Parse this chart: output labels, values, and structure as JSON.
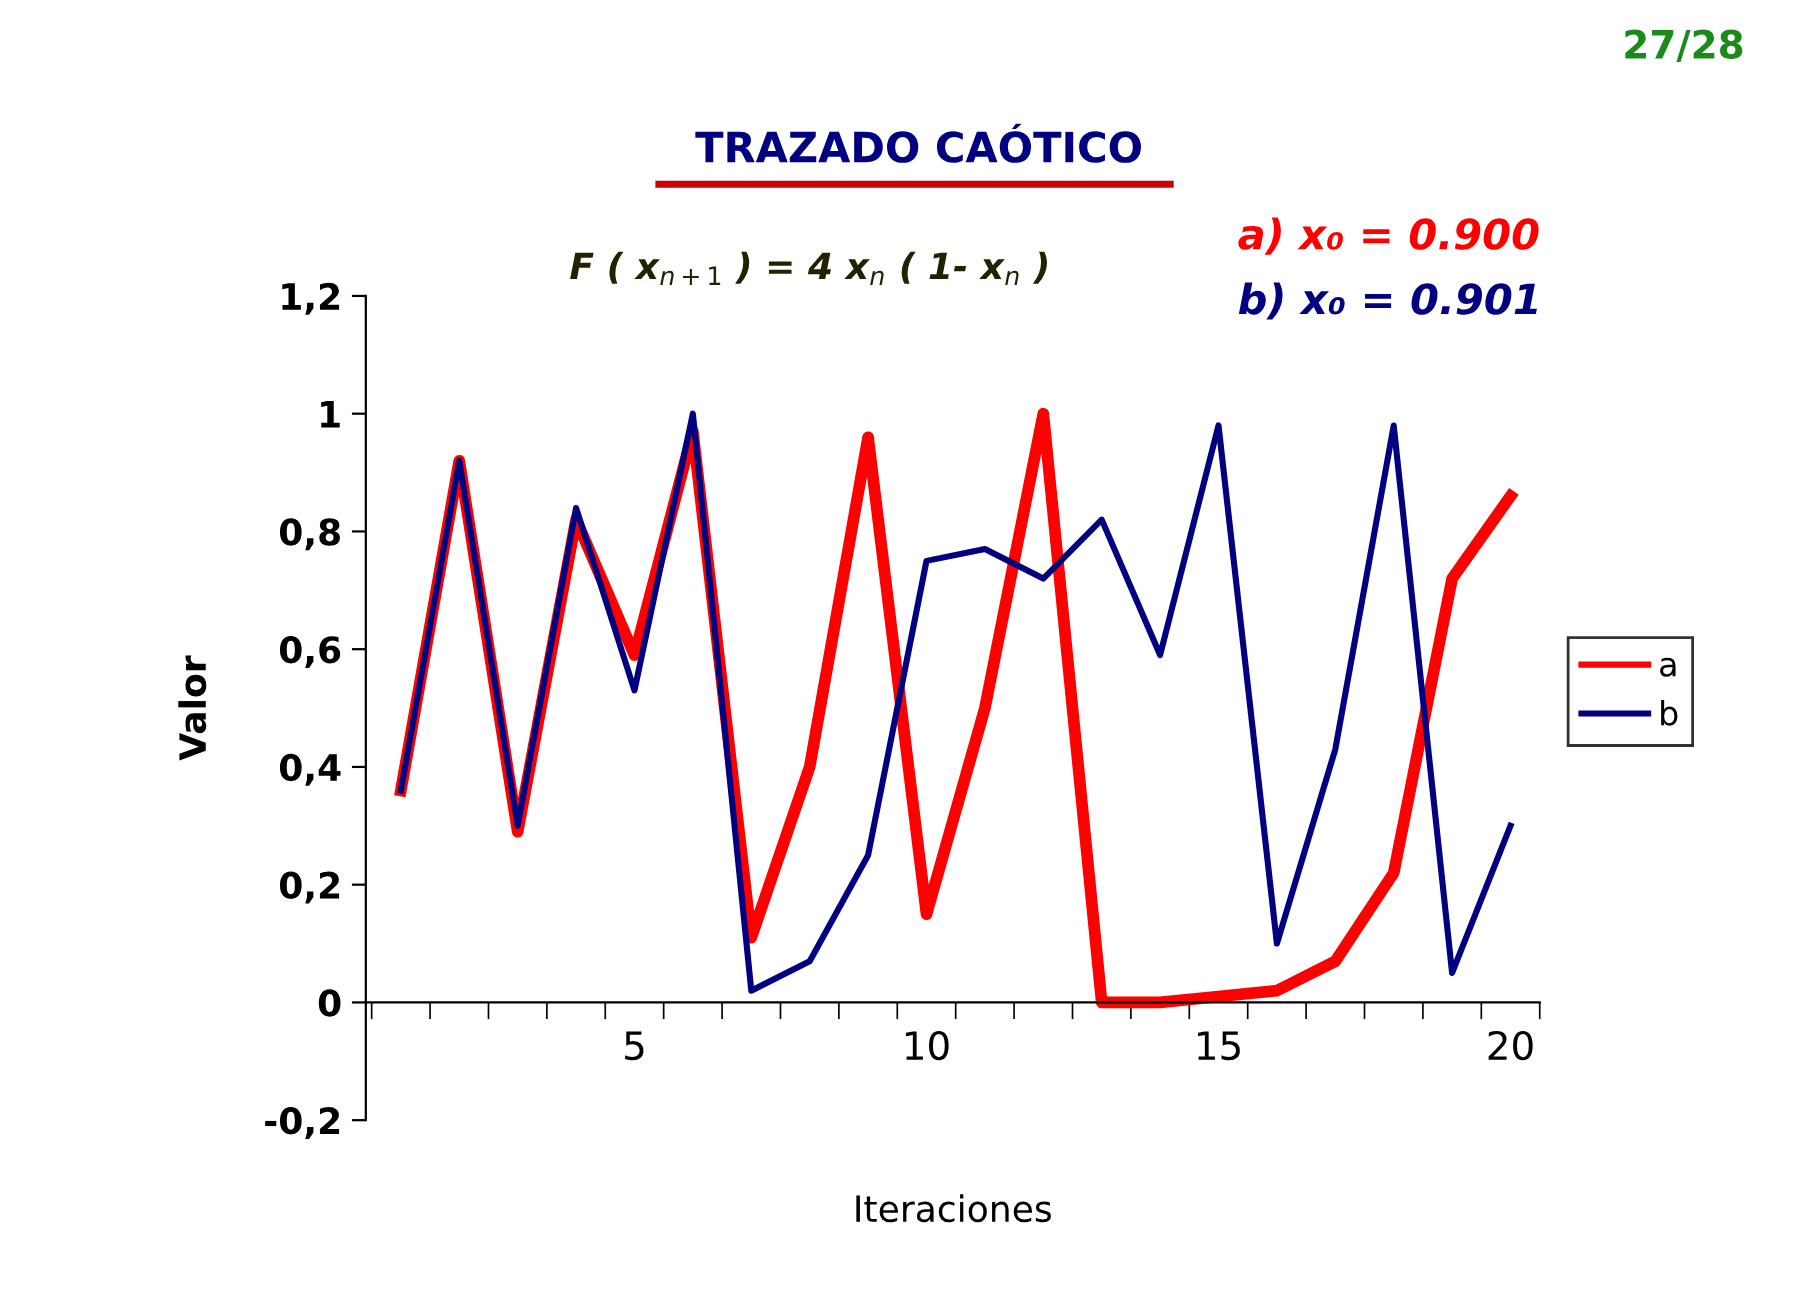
{
  "chart_data": {
    "type": "line",
    "title": "TRAZADO CAÓTICO",
    "subtitle": "F ( x$_{n+1}$ ) = 4 x$_{n}$ ( 1- x$_{n}$ )",
    "xlabel": "Iteraciones",
    "ylabel": "Valor",
    "annotations": [
      "a) x₀ = 0.900",
      "b) x₀ = 0.901",
      "27/28"
    ],
    "categories": [
      null,
      null,
      null,
      null,
      "5",
      null,
      null,
      null,
      null,
      "10",
      null,
      null,
      null,
      null,
      "15",
      null,
      null,
      null,
      null,
      "20"
    ],
    "series": [
      {
        "name": "a",
        "color": "#ff0000",
        "values": [
          0.36,
          0.92,
          0.29,
          0.82,
          0.59,
          0.97,
          0.11,
          0.4,
          0.96,
          0.15,
          0.5,
          1.0,
          0.0,
          0.0,
          0.01,
          0.02,
          0.07,
          0.22,
          0.72,
          0.86
        ]
      },
      {
        "name": "b",
        "color": "#000080",
        "values": [
          0.36,
          0.92,
          0.3,
          0.84,
          0.53,
          1.0,
          0.02,
          0.07,
          0.25,
          0.75,
          0.77,
          0.72,
          0.82,
          0.59,
          0.98,
          0.1,
          0.43,
          0.98,
          0.05,
          0.3
        ]
      }
    ],
    "ylim": [
      -0.2,
      1.2
    ],
    "yticks": [
      {
        "value": -0.2,
        "label": "-0,2"
      },
      0,
      {
        "value": 0.2,
        "label": "0,2"
      },
      {
        "value": 0.4,
        "label": "0,4"
      },
      {
        "value": 0.6,
        "label": "0,6"
      },
      {
        "value": 0.8,
        "label": "0,8"
      },
      1,
      {
        "value": 1.2,
        "label": "1,2"
      }
    ],
    "grid": false,
    "legend": "right",
    "line_style": "solid"
  }
}
